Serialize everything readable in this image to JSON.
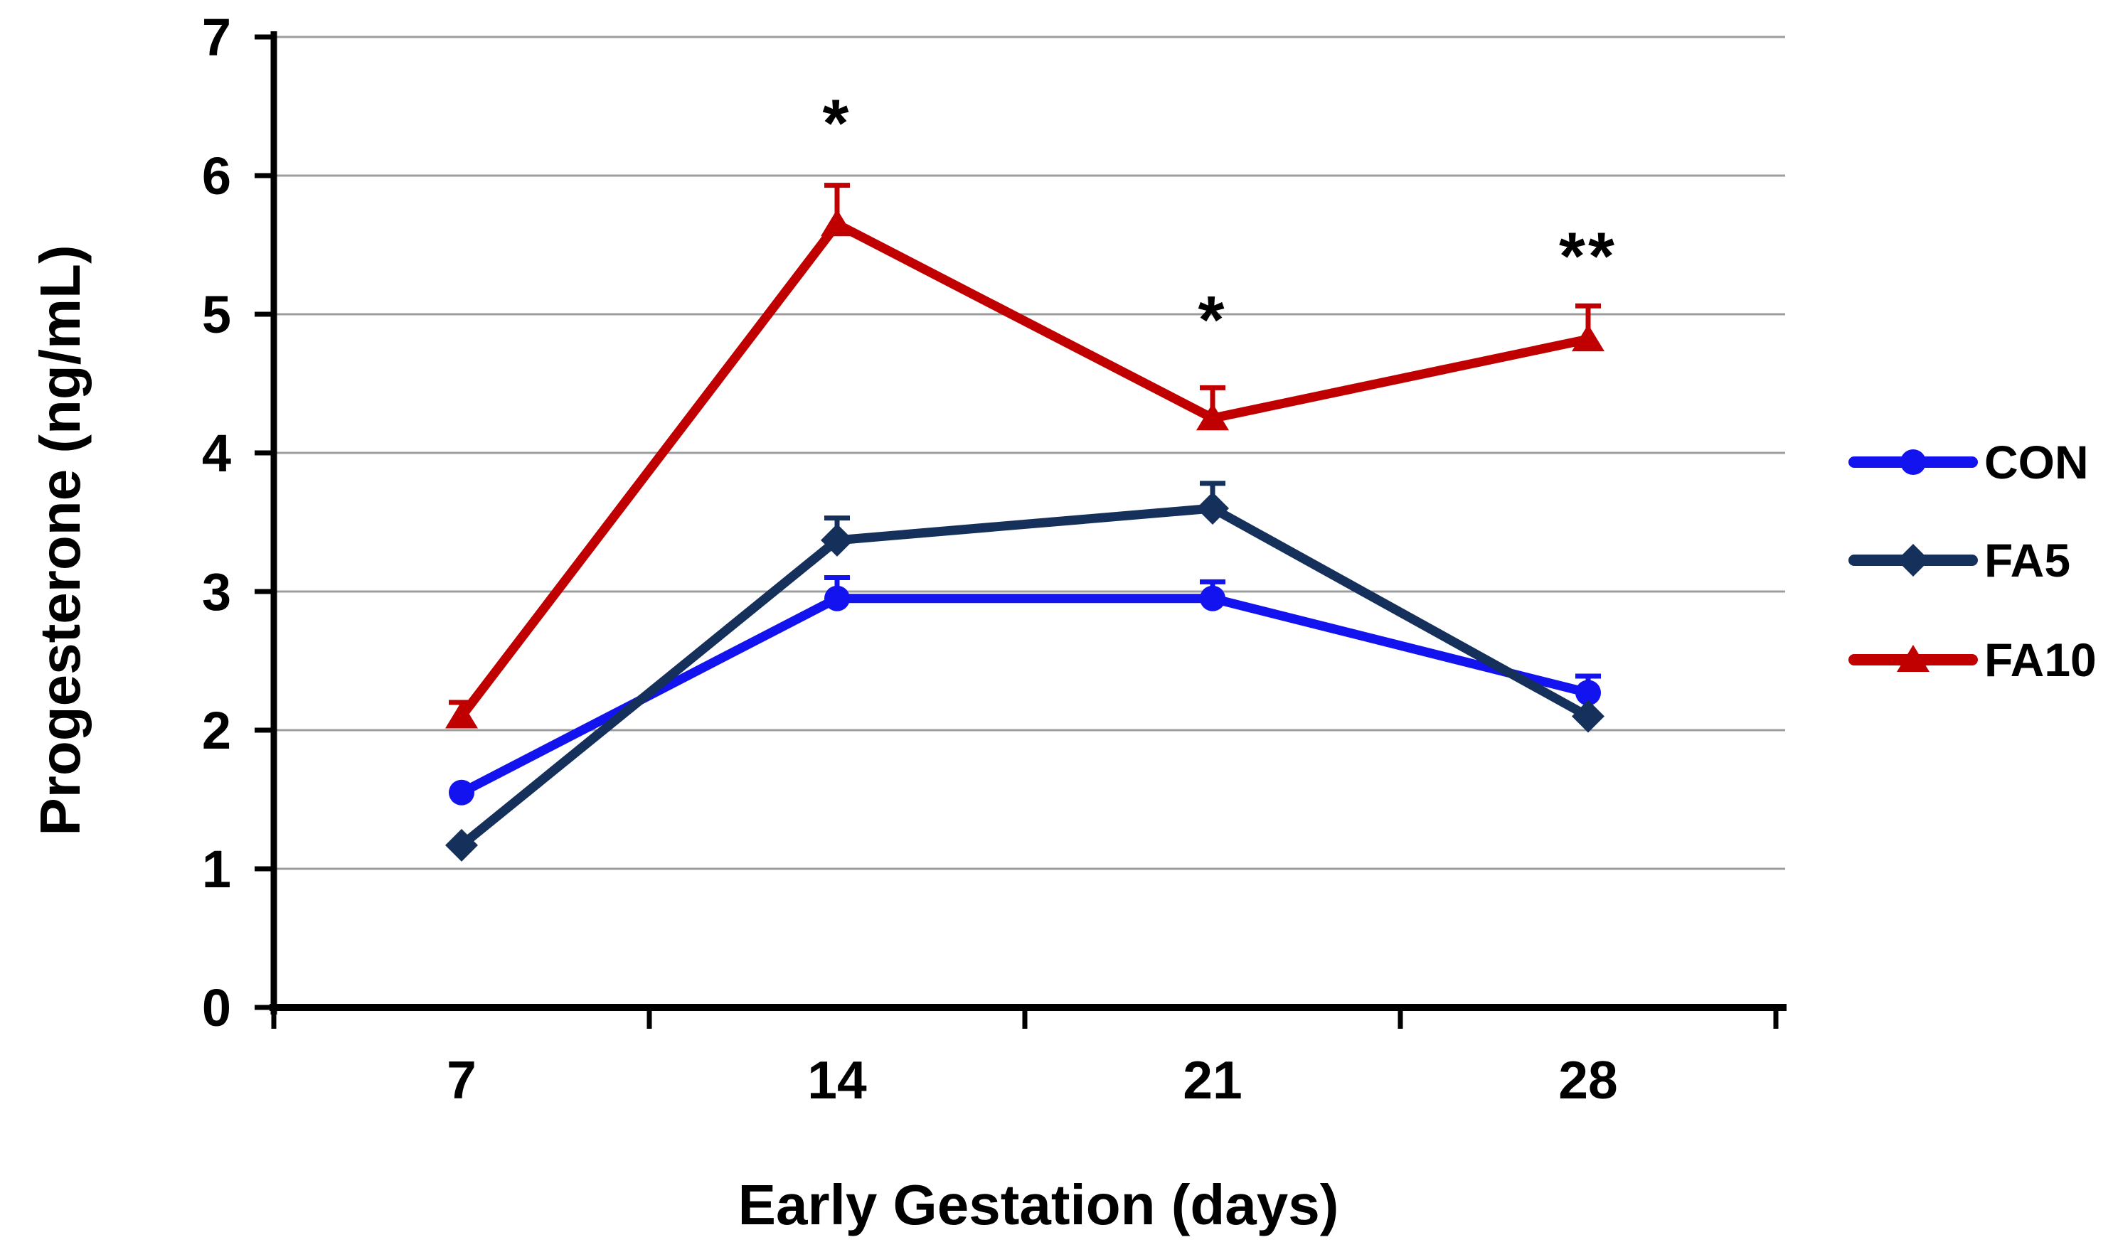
{
  "chart_data": {
    "type": "line",
    "title": "",
    "xlabel": "Early Gestation (days)",
    "ylabel": "Progesterone (ng/mL)",
    "categories": [
      "7",
      "14",
      "21",
      "28"
    ],
    "y_ticks": [
      0,
      1,
      2,
      3,
      4,
      5,
      6,
      7
    ],
    "ylim": [
      0,
      7
    ],
    "grid": "horizontal",
    "legend_position": "right-outside",
    "series": [
      {
        "name": "CON",
        "color": "#1313f0",
        "marker": "circle",
        "values": [
          1.55,
          2.95,
          2.95,
          2.27
        ],
        "error_up": [
          0,
          0.15,
          0.12,
          0.12
        ]
      },
      {
        "name": "FA5",
        "color": "#16305c",
        "marker": "diamond",
        "values": [
          1.17,
          3.37,
          3.6,
          2.1
        ],
        "error_up": [
          0,
          0.16,
          0.18,
          0
        ]
      },
      {
        "name": "FA10",
        "color": "#c00000",
        "marker": "triangle",
        "values": [
          2.1,
          5.65,
          4.25,
          4.82
        ],
        "error_up": [
          0.1,
          0.28,
          0.22,
          0.24
        ]
      }
    ],
    "annotations": [
      {
        "text": "*",
        "category": "14",
        "y": 6.45
      },
      {
        "text": "*",
        "category": "21",
        "y": 5.03
      },
      {
        "text": "**",
        "category": "28",
        "y": 5.49
      }
    ],
    "axis_color": "#000000",
    "gridline_color": "#9d9d9d",
    "tick_label_color": "#000000",
    "annotation_color": "#111111"
  }
}
